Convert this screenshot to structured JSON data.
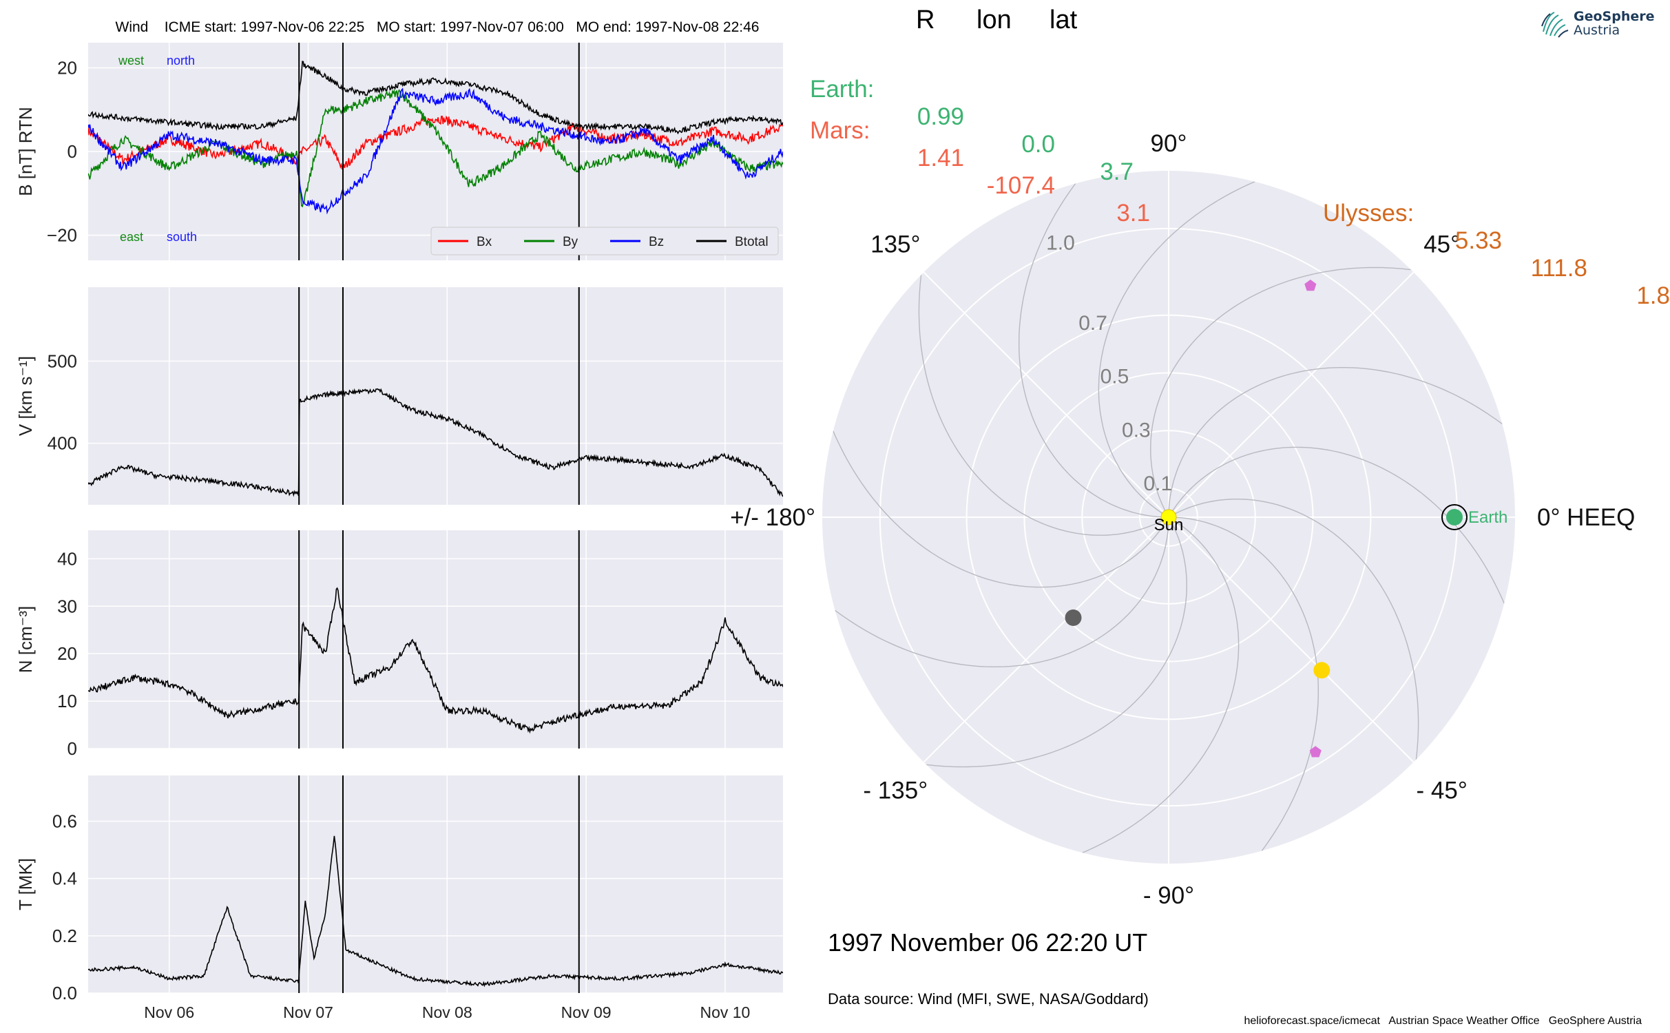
{
  "header": {
    "event_line": "Wind    ICME start: 1997-Nov-06 22:25   MO start: 1997-Nov-07 06:00   MO end: 1997-Nov-08 22:46"
  },
  "positions": {
    "columns": [
      "R",
      "lon",
      "lat"
    ],
    "rows": [
      {
        "name": "Earth:",
        "R": "0.99",
        "lon": "0.0",
        "lat": "3.7",
        "color": "#3cb371"
      },
      {
        "name": "Mars:",
        "R": "1.41",
        "lon": "-107.4",
        "lat": "3.1",
        "color": "#f0644b"
      },
      {
        "name": "Ulysses:",
        "R": "5.33",
        "lon": "111.8",
        "lat": "1.8",
        "color": "#d2691e"
      }
    ]
  },
  "footer": {
    "date": "1997 November 06  22:20 UT",
    "source": "Data source: Wind (MFI, SWE, NASA/Goddard)",
    "credits": "helioforecast.space/icmecat   Austrian Space Weather Office   GeoSphere Austria"
  },
  "logo": {
    "line1": "GeoSphere",
    "line2": "Austria"
  },
  "chart_data": [
    {
      "type": "line",
      "panel": "magnetic field",
      "ylabel": "B [nT] RTN",
      "ylim": [
        -26,
        26
      ],
      "yticks": [
        20,
        0,
        -20
      ],
      "ytick_labels": [
        "20",
        "0",
        "−20"
      ],
      "xlim": [
        "1997-11-05 10:00",
        "1997-11-10 10:00"
      ],
      "xticks": [
        "Nov 06",
        "Nov 07",
        "Nov 08",
        "Nov 09",
        "Nov 10"
      ],
      "vlines": [
        "1997-11-06 22:25",
        "1997-11-07 06:00",
        "1997-11-08 22:46"
      ],
      "annotations": {
        "top": [
          {
            "text": "west",
            "color": "#138a13"
          },
          {
            "text": "north",
            "color": "#1a1aff"
          }
        ],
        "bottom": [
          {
            "text": "east",
            "color": "#138a13"
          },
          {
            "text": "south",
            "color": "#1a1aff"
          }
        ]
      },
      "legend": {
        "placement": "bottom-right",
        "entries": [
          "Bx",
          "By",
          "Bz",
          "Btotal"
        ]
      },
      "x": [
        "1997-11-05 10:00",
        "1997-11-05 16:00",
        "1997-11-06 00:00",
        "1997-11-06 08:00",
        "1997-11-06 16:00",
        "1997-11-06 22:00",
        "1997-11-06 23:00",
        "1997-11-07 03:00",
        "1997-11-07 06:00",
        "1997-11-07 10:00",
        "1997-11-07 16:00",
        "1997-11-07 22:00",
        "1997-11-08 04:00",
        "1997-11-08 10:00",
        "1997-11-08 16:00",
        "1997-11-08 22:00",
        "1997-11-09 04:00",
        "1997-11-09 10:00",
        "1997-11-09 16:00",
        "1997-11-09 22:00",
        "1997-11-10 04:00",
        "1997-11-10 10:00"
      ],
      "series": [
        {
          "name": "Bx",
          "color": "#ff0000",
          "values": [
            5,
            -2,
            3,
            -1,
            2,
            -2,
            0,
            3,
            -4,
            2,
            5,
            8,
            6,
            3,
            1,
            6,
            3,
            4,
            2,
            5,
            3,
            6
          ]
        },
        {
          "name": "By",
          "color": "#008000",
          "values": [
            -6,
            3,
            -4,
            2,
            -3,
            0,
            -14,
            10,
            10,
            12,
            14,
            5,
            -8,
            -3,
            4,
            -4,
            -2,
            0,
            -3,
            2,
            -4,
            -3
          ]
        },
        {
          "name": "Bz",
          "color": "#0000ff",
          "values": [
            6,
            -4,
            4,
            2,
            -2,
            -2,
            -12,
            -14,
            -10,
            -6,
            14,
            12,
            14,
            8,
            6,
            4,
            2,
            5,
            -2,
            3,
            -6,
            0
          ]
        },
        {
          "name": "Btotal",
          "color": "#000000",
          "values": [
            9,
            8,
            7,
            6,
            6,
            8,
            21,
            18,
            15,
            14,
            16,
            17,
            16,
            14,
            9,
            6,
            6,
            6,
            5,
            7,
            8,
            7
          ]
        }
      ]
    },
    {
      "type": "line",
      "panel": "speed",
      "ylabel": "V [km s⁻¹]",
      "ylim": [
        325,
        590
      ],
      "yticks": [
        500,
        400
      ],
      "ytick_labels": [
        "500",
        "400"
      ],
      "vlines": [
        "1997-11-06 22:25",
        "1997-11-07 06:00",
        "1997-11-08 22:46"
      ],
      "x": [
        "1997-11-05 10:00",
        "1997-11-05 16:00",
        "1997-11-05 22:00",
        "1997-11-06 06:00",
        "1997-11-06 14:00",
        "1997-11-06 22:20",
        "1997-11-06 22:30",
        "1997-11-07 04:00",
        "1997-11-07 12:00",
        "1997-11-07 18:00",
        "1997-11-08 00:00",
        "1997-11-08 06:00",
        "1997-11-08 12:00",
        "1997-11-08 18:00",
        "1997-11-09 00:00",
        "1997-11-09 06:00",
        "1997-11-09 12:00",
        "1997-11-09 18:00",
        "1997-11-10 00:00",
        "1997-11-10 06:00",
        "1997-11-10 10:00"
      ],
      "series": [
        {
          "name": "",
          "color": "#000000",
          "values": [
            350,
            372,
            360,
            355,
            348,
            338,
            452,
            460,
            465,
            440,
            430,
            410,
            385,
            370,
            382,
            380,
            375,
            372,
            385,
            368,
            335
          ]
        }
      ]
    },
    {
      "type": "line",
      "panel": "density",
      "ylabel": "N [cm⁻³]",
      "ylim": [
        0,
        46
      ],
      "yticks": [
        40,
        30,
        20,
        10,
        0
      ],
      "ytick_labels": [
        "40",
        "30",
        "20",
        "10",
        "0"
      ],
      "vlines": [
        "1997-11-06 22:25",
        "1997-11-07 06:00",
        "1997-11-08 22:46"
      ],
      "x": [
        "1997-11-05 10:00",
        "1997-11-05 18:00",
        "1997-11-06 02:00",
        "1997-11-06 10:00",
        "1997-11-06 18:00",
        "1997-11-06 22:20",
        "1997-11-06 23:00",
        "1997-11-07 03:00",
        "1997-11-07 05:00",
        "1997-11-07 08:00",
        "1997-11-07 14:00",
        "1997-11-07 18:00",
        "1997-11-08 00:00",
        "1997-11-08 06:00",
        "1997-11-08 14:00",
        "1997-11-08 22:00",
        "1997-11-09 06:00",
        "1997-11-09 14:00",
        "1997-11-09 20:00",
        "1997-11-10 00:00",
        "1997-11-10 06:00",
        "1997-11-10 10:00"
      ],
      "series": [
        {
          "name": "",
          "color": "#000000",
          "values": [
            12,
            15,
            13,
            7,
            9,
            10,
            26,
            20,
            34,
            14,
            17,
            23,
            8,
            8,
            4,
            7,
            9,
            9,
            14,
            27,
            15,
            13
          ]
        }
      ]
    },
    {
      "type": "line",
      "panel": "temperature",
      "ylabel": "T [MK]",
      "ylim": [
        0,
        0.76
      ],
      "yticks": [
        0.6,
        0.4,
        0.2,
        0.0
      ],
      "ytick_labels": [
        "0.6",
        "0.4",
        "0.2",
        "0.0"
      ],
      "xticks": [
        "Nov 06",
        "Nov 07",
        "Nov 08",
        "Nov 09",
        "Nov 10"
      ],
      "vlines": [
        "1997-11-06 22:25",
        "1997-11-07 06:00",
        "1997-11-08 22:46"
      ],
      "x": [
        "1997-11-05 10:00",
        "1997-11-05 18:00",
        "1997-11-06 00:00",
        "1997-11-06 06:00",
        "1997-11-06 10:00",
        "1997-11-06 14:00",
        "1997-11-06 22:20",
        "1997-11-06 23:30",
        "1997-11-07 01:00",
        "1997-11-07 03:00",
        "1997-11-07 04:30",
        "1997-11-07 06:30",
        "1997-11-07 10:00",
        "1997-11-07 18:00",
        "1997-11-08 06:00",
        "1997-11-08 18:00",
        "1997-11-09 06:00",
        "1997-11-09 18:00",
        "1997-11-10 00:00",
        "1997-11-10 10:00"
      ],
      "series": [
        {
          "name": "",
          "color": "#000000",
          "values": [
            0.08,
            0.09,
            0.05,
            0.06,
            0.3,
            0.06,
            0.04,
            0.32,
            0.12,
            0.28,
            0.55,
            0.15,
            0.12,
            0.05,
            0.03,
            0.06,
            0.05,
            0.07,
            0.1,
            0.07
          ]
        }
      ]
    },
    {
      "type": "scatter",
      "panel": "heliospheric positions (polar)",
      "rlabels": [
        "0.1",
        "0.3",
        "0.5",
        "0.7",
        "1.0"
      ],
      "angle_labels": [
        {
          "deg": 0,
          "text": "0° HEEQ"
        },
        {
          "deg": 45,
          "text": "45°"
        },
        {
          "deg": 90,
          "text": "90°"
        },
        {
          "deg": 135,
          "text": "135°"
        },
        {
          "deg": 180,
          "text": "+/- 180°"
        },
        {
          "deg": 225,
          "text": "- 135°"
        },
        {
          "deg": 270,
          "text": "- 90°"
        },
        {
          "deg": 315,
          "text": "- 45°"
        }
      ],
      "points": [
        {
          "label": "Sun",
          "lon": 0,
          "r": 0,
          "color": "#ffff00",
          "shape": "circle"
        },
        {
          "label": "Earth",
          "lon": 0.0,
          "r": 0.99,
          "color": "#3cb371",
          "shape": "circle"
        },
        {
          "label": "",
          "lon": -45,
          "r": 0.75,
          "color": "#ffd700",
          "shape": "circle"
        },
        {
          "label": "",
          "lon": 226.5,
          "r": 0.48,
          "color": "#606060",
          "shape": "circle"
        },
        {
          "label": "",
          "lon": 58.5,
          "r": 0.94,
          "color": "#da70d6",
          "shape": "pentagon"
        },
        {
          "label": "",
          "lon": -58,
          "r": 0.96,
          "color": "#da70d6",
          "shape": "pentagon"
        }
      ]
    }
  ]
}
